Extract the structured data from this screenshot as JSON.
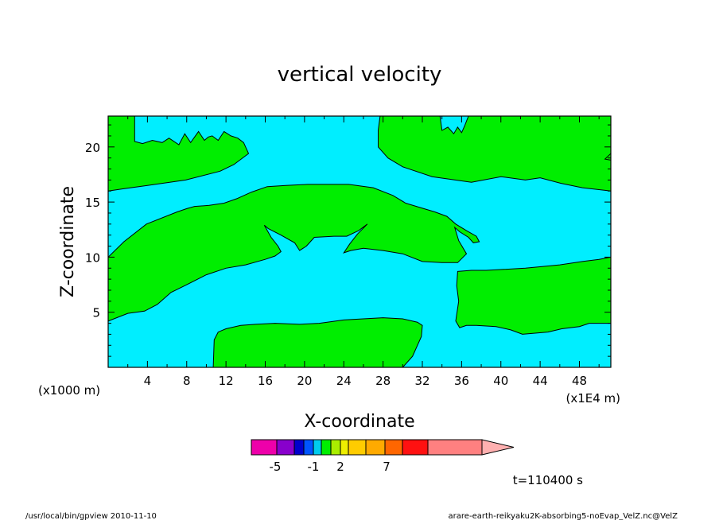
{
  "chart_data": {
    "type": "heatmap",
    "title": "vertical velocity",
    "xlabel": "X-coordinate",
    "ylabel": "Z-coordinate",
    "x_unit_left": "(x1000 m)",
    "x_unit_right": "(x1E4 m)",
    "x_ticks": [
      "4",
      "8",
      "12",
      "16",
      "20",
      "24",
      "28",
      "32",
      "36",
      "40",
      "44",
      "48"
    ],
    "x_tick_values": [
      4,
      8,
      12,
      16,
      20,
      24,
      28,
      32,
      36,
      40,
      44,
      48
    ],
    "y_ticks": [
      "5",
      "10",
      "15",
      "20"
    ],
    "y_tick_values": [
      5,
      10,
      15,
      20
    ],
    "xlim": [
      0,
      51.2
    ],
    "ylim": [
      0,
      22.8
    ],
    "field_colors": {
      "background": "#00eeff",
      "contour_fill": "#00ee00"
    },
    "regions": [
      {
        "name": "upper-left",
        "polygon": [
          [
            0,
            22.8
          ],
          [
            2.7,
            22.8
          ],
          [
            2.7,
            20.5
          ],
          [
            3.5,
            20.3
          ],
          [
            4.5,
            20.6
          ],
          [
            5.5,
            20.4
          ],
          [
            6.2,
            20.8
          ],
          [
            7.2,
            20.2
          ],
          [
            7.8,
            21.2
          ],
          [
            8.4,
            20.4
          ],
          [
            9.2,
            21.4
          ],
          [
            9.8,
            20.6
          ],
          [
            10.2,
            20.9
          ],
          [
            10.6,
            21.0
          ],
          [
            11.2,
            20.6
          ],
          [
            11.8,
            21.4
          ],
          [
            12.5,
            21.0
          ],
          [
            13.2,
            20.8
          ],
          [
            13.8,
            20.4
          ],
          [
            14.3,
            19.4
          ],
          [
            12.8,
            18.4
          ],
          [
            11.4,
            17.8
          ],
          [
            7.9,
            17.0
          ],
          [
            4.0,
            16.5
          ],
          [
            1.5,
            16.2
          ],
          [
            0,
            16.0
          ]
        ]
      },
      {
        "name": "middle-band",
        "polygon": [
          [
            0,
            10.0
          ],
          [
            1.6,
            11.4
          ],
          [
            3.9,
            13.0
          ],
          [
            7.0,
            14.1
          ],
          [
            8.0,
            14.4
          ],
          [
            8.8,
            14.6
          ],
          [
            10.3,
            14.7
          ],
          [
            11.8,
            14.9
          ],
          [
            13.1,
            15.3
          ],
          [
            14.6,
            15.9
          ],
          [
            16.2,
            16.4
          ],
          [
            18.1,
            16.5
          ],
          [
            20.3,
            16.6
          ],
          [
            24.5,
            16.6
          ],
          [
            27.0,
            16.3
          ],
          [
            29.0,
            15.6
          ],
          [
            30.3,
            14.9
          ],
          [
            31.4,
            14.6
          ],
          [
            33.3,
            14.1
          ],
          [
            34.5,
            13.7
          ],
          [
            35.4,
            13.0
          ],
          [
            36.5,
            12.4
          ],
          [
            37.5,
            11.9
          ],
          [
            37.8,
            11.4
          ],
          [
            37.2,
            11.3
          ],
          [
            36.7,
            11.8
          ],
          [
            35.8,
            12.3
          ],
          [
            35.3,
            12.7
          ],
          [
            35.7,
            11.5
          ],
          [
            36.5,
            10.3
          ],
          [
            35.6,
            9.5
          ],
          [
            34.0,
            9.5
          ],
          [
            32.0,
            9.6
          ],
          [
            30.0,
            10.3
          ],
          [
            28.0,
            10.6
          ],
          [
            26.0,
            10.8
          ],
          [
            24.7,
            10.6
          ],
          [
            24.0,
            10.4
          ],
          [
            24.6,
            11.2
          ],
          [
            25.4,
            12.1
          ],
          [
            26.4,
            13.0
          ],
          [
            25.5,
            12.4
          ],
          [
            24.3,
            11.9
          ],
          [
            23.0,
            11.9
          ],
          [
            21.0,
            11.8
          ],
          [
            20.2,
            11.0
          ],
          [
            19.5,
            10.6
          ],
          [
            19.0,
            11.3
          ],
          [
            17.6,
            12.0
          ],
          [
            16.3,
            12.6
          ],
          [
            15.9,
            12.9
          ],
          [
            16.6,
            11.8
          ],
          [
            17.3,
            11.0
          ],
          [
            17.6,
            10.5
          ],
          [
            17.0,
            10.1
          ],
          [
            16.0,
            9.8
          ],
          [
            14.0,
            9.3
          ],
          [
            12.0,
            9.0
          ],
          [
            10.0,
            8.4
          ],
          [
            8.0,
            7.5
          ],
          [
            6.4,
            6.8
          ],
          [
            5.0,
            5.7
          ],
          [
            3.7,
            5.1
          ],
          [
            2.0,
            4.9
          ],
          [
            0,
            4.2
          ]
        ]
      },
      {
        "name": "upper-right",
        "polygon": [
          [
            27.7,
            22.8
          ],
          [
            33.8,
            22.8
          ],
          [
            34.0,
            21.5
          ],
          [
            34.6,
            21.8
          ],
          [
            35.2,
            21.2
          ],
          [
            35.6,
            21.8
          ],
          [
            36.0,
            21.3
          ],
          [
            36.3,
            21.9
          ],
          [
            36.7,
            22.8
          ],
          [
            51.2,
            22.8
          ],
          [
            51.2,
            16.0
          ],
          [
            48.3,
            16.3
          ],
          [
            46.1,
            16.7
          ],
          [
            44.0,
            17.2
          ],
          [
            42.5,
            17.0
          ],
          [
            40.0,
            17.3
          ],
          [
            37.0,
            16.8
          ],
          [
            33.0,
            17.3
          ],
          [
            30.0,
            18.2
          ],
          [
            28.5,
            19.0
          ],
          [
            27.5,
            20.0
          ],
          [
            27.5,
            21.5
          ]
        ]
      },
      {
        "name": "right-lower",
        "polygon": [
          [
            35.6,
            8.7
          ],
          [
            37.0,
            8.8
          ],
          [
            38.5,
            8.8
          ],
          [
            42.5,
            9.0
          ],
          [
            46.0,
            9.3
          ],
          [
            48.3,
            9.6
          ],
          [
            50.0,
            9.8
          ],
          [
            51.2,
            10.0
          ],
          [
            51.2,
            4.0
          ],
          [
            50.5,
            4.0
          ],
          [
            49.0,
            4.0
          ],
          [
            48.0,
            3.7
          ],
          [
            46.2,
            3.5
          ],
          [
            44.8,
            3.2
          ],
          [
            42.2,
            3.0
          ],
          [
            41.0,
            3.4
          ],
          [
            39.5,
            3.7
          ],
          [
            37.5,
            3.8
          ],
          [
            36.5,
            3.8
          ],
          [
            35.8,
            3.6
          ],
          [
            35.4,
            4.2
          ],
          [
            35.7,
            6.0
          ],
          [
            35.5,
            7.4
          ]
        ]
      },
      {
        "name": "bottom-center",
        "polygon": [
          [
            10.7,
            0
          ],
          [
            10.8,
            2.5
          ],
          [
            11.2,
            3.2
          ],
          [
            12.0,
            3.5
          ],
          [
            13.5,
            3.8
          ],
          [
            15.0,
            3.9
          ],
          [
            17.0,
            4.0
          ],
          [
            19.5,
            3.9
          ],
          [
            21.5,
            4.0
          ],
          [
            24.0,
            4.3
          ],
          [
            26.0,
            4.4
          ],
          [
            28.0,
            4.5
          ],
          [
            30.0,
            4.4
          ],
          [
            31.5,
            4.1
          ],
          [
            32.0,
            3.8
          ],
          [
            31.9,
            2.8
          ],
          [
            31.0,
            1.0
          ],
          [
            30.0,
            0
          ]
        ]
      },
      {
        "name": "edge-blob",
        "polygon": [
          [
            50.6,
            18.9
          ],
          [
            51.2,
            19.4
          ],
          [
            51.2,
            18.8
          ]
        ]
      }
    ],
    "colorbar": {
      "colors": [
        "#ee00aa",
        "#8800cc",
        "#0000cc",
        "#0055ff",
        "#00ccee",
        "#00ee00",
        "#aaee00",
        "#eeee00",
        "#ffcc00",
        "#ffaa00",
        "#ff6600",
        "#ff1111",
        "#ff8080",
        "#ffb0b0"
      ],
      "labels": [
        "-5",
        "-1",
        "2",
        "7"
      ]
    },
    "time_label": "t=110400 s"
  },
  "footer": {
    "left": "/usr/local/bin/gpview   2010-11-10",
    "right": "arare-earth-reikyaku2K-absorbing5-noEvap_VelZ.nc@VelZ"
  }
}
